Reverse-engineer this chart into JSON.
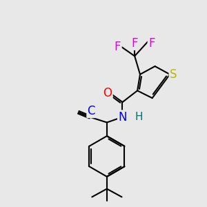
{
  "bg_color": "#e8e8e8",
  "bond_color": "#000000",
  "bond_width": 1.5,
  "atom_colors": {
    "F": "#e000e0",
    "O": "#ff0000",
    "N": "#0000ff",
    "H": "#007070",
    "S": "#b8b800",
    "C": "#0000ff"
  }
}
